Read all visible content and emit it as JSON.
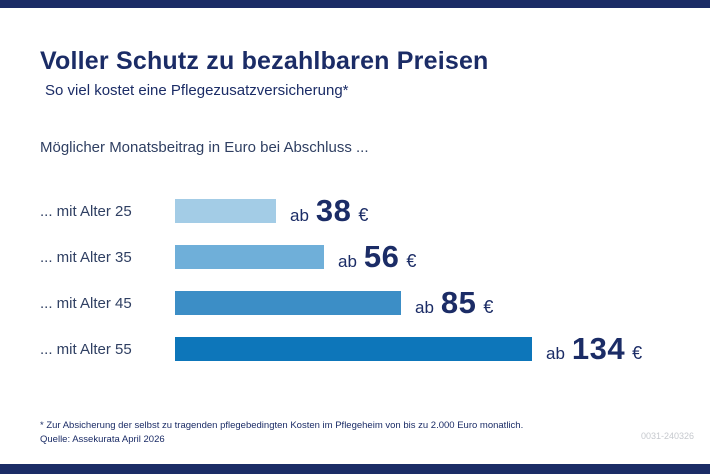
{
  "header": {
    "title": "Voller Schutz zu bezahlbaren Preisen",
    "subtitle": "So viel kostet eine Pflegezusatzversicherung*"
  },
  "chart_data": {
    "type": "bar",
    "orientation": "horizontal",
    "title": "Möglicher Monatsbeitrag in Euro bei Abschluss ...",
    "categories": [
      "... mit Alter 25",
      "... mit Alter 35",
      "... mit Alter 45",
      "... mit Alter 55"
    ],
    "values": [
      38,
      56,
      85,
      134
    ],
    "value_prefix": "ab",
    "value_suffix": "€",
    "value_unit": "Euro pro Monat",
    "bar_colors": [
      "#a3cce6",
      "#6fafd9",
      "#3c8ec6",
      "#0d76ba"
    ],
    "xlim": [
      0,
      134
    ],
    "grid": false,
    "legend": false
  },
  "footer": {
    "footnote": "* Zur Absicherung der selbst zu tragenden pflegebedingten Kosten im Pflegeheim von bis zu 2.000 Euro monatlich.",
    "source": "Quelle: Assekurata April 2026",
    "doc_id": "0031-240326"
  },
  "colors": {
    "navy": "#1b2c66",
    "label": "#2f3f62",
    "docid_gray": "#c6c9ce"
  }
}
